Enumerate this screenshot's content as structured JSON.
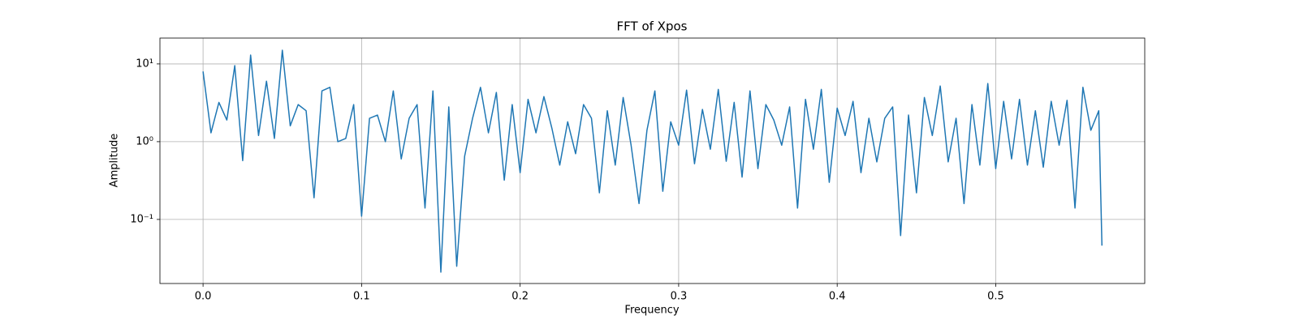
{
  "chart_data": {
    "type": "line",
    "title": "FFT of Xpos",
    "x_label": "Frequency",
    "y_label": "Amplitude",
    "x": [
      0.0,
      0.005,
      0.01,
      0.015,
      0.02,
      0.025,
      0.03,
      0.035,
      0.04,
      0.045,
      0.05,
      0.055,
      0.06,
      0.065,
      0.07,
      0.075,
      0.08,
      0.085,
      0.09,
      0.095,
      0.1,
      0.105,
      0.11,
      0.115,
      0.12,
      0.125,
      0.13,
      0.135,
      0.14,
      0.145,
      0.15,
      0.155,
      0.16,
      0.165,
      0.17,
      0.175,
      0.18,
      0.185,
      0.19,
      0.195,
      0.2,
      0.205,
      0.21,
      0.215,
      0.22,
      0.225,
      0.23,
      0.235,
      0.24,
      0.245,
      0.25,
      0.255,
      0.26,
      0.265,
      0.27,
      0.275,
      0.28,
      0.285,
      0.29,
      0.295,
      0.3,
      0.305,
      0.31,
      0.315,
      0.32,
      0.325,
      0.33,
      0.335,
      0.34,
      0.345,
      0.35,
      0.355,
      0.36,
      0.365,
      0.37,
      0.375,
      0.38,
      0.385,
      0.39,
      0.395,
      0.4,
      0.405,
      0.41,
      0.415,
      0.42,
      0.425,
      0.43,
      0.435,
      0.44,
      0.445,
      0.45,
      0.455,
      0.46,
      0.465,
      0.47,
      0.475,
      0.48,
      0.485,
      0.49,
      0.495,
      0.5,
      0.505,
      0.51,
      0.515,
      0.52,
      0.525,
      0.53,
      0.535,
      0.54,
      0.545,
      0.55,
      0.555,
      0.56,
      0.565,
      0.567
    ],
    "values": [
      8.0,
      1.3,
      3.2,
      1.9,
      9.5,
      0.57,
      13.0,
      1.2,
      6.0,
      1.1,
      15.0,
      1.6,
      3.0,
      2.5,
      0.19,
      4.5,
      5.0,
      1.0,
      1.1,
      3.0,
      0.11,
      2.0,
      2.2,
      1.0,
      4.5,
      0.6,
      2.0,
      3.0,
      0.14,
      4.5,
      0.021,
      2.8,
      0.025,
      0.65,
      2.0,
      5.0,
      1.3,
      4.3,
      0.32,
      3.0,
      0.4,
      3.5,
      1.3,
      3.8,
      1.5,
      0.5,
      1.8,
      0.7,
      3.0,
      2.0,
      0.22,
      2.5,
      0.5,
      3.7,
      0.9,
      0.16,
      1.4,
      4.5,
      0.23,
      1.8,
      0.9,
      4.6,
      0.52,
      2.6,
      0.8,
      4.7,
      0.56,
      3.2,
      0.35,
      4.5,
      0.45,
      3.0,
      1.9,
      0.9,
      2.8,
      0.14,
      3.5,
      0.8,
      4.7,
      0.3,
      2.7,
      1.2,
      3.3,
      0.4,
      2.0,
      0.55,
      2.0,
      2.8,
      0.062,
      2.2,
      0.22,
      3.7,
      1.2,
      5.2,
      0.55,
      2.0,
      0.16,
      3.0,
      0.5,
      5.6,
      0.45,
      3.3,
      0.6,
      3.5,
      0.5,
      2.5,
      0.47,
      3.3,
      0.9,
      3.4,
      0.14,
      5.0,
      1.4,
      2.5,
      0.046
    ],
    "color": "#1f77b4",
    "xlim": [
      -0.0272,
      0.594
    ],
    "xticks": [
      {
        "value": 0,
        "label": "0.0"
      },
      0.1,
      0.2,
      0.3,
      0.4,
      0.5
    ],
    "ylim": [
      0.015,
      21.5
    ],
    "yticks": [
      {
        "value": 0.1,
        "label": "10⁻¹"
      },
      {
        "value": 1,
        "label": "10⁰"
      },
      {
        "value": 10,
        "label": "10¹"
      }
    ],
    "y_scale": "log",
    "grid": true
  }
}
